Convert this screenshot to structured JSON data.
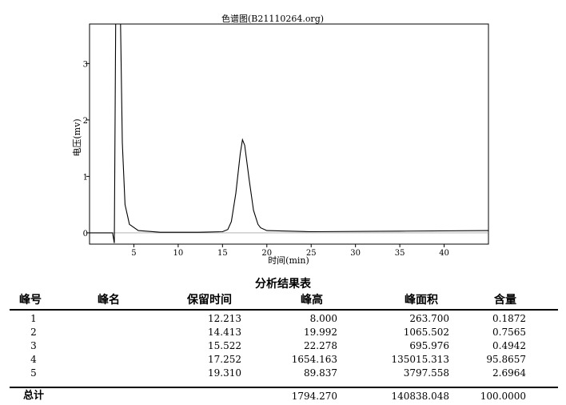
{
  "chart_data": {
    "type": "line",
    "title": "色谱图(B21110264.org)",
    "xlabel": "时间(min)",
    "ylabel": "电压(mv)",
    "xlim": [
      0,
      45
    ],
    "ylim": [
      -0.2,
      3.7
    ],
    "x_ticks": [
      5,
      10,
      15,
      20,
      25,
      30,
      35,
      40
    ],
    "y_ticks": [
      0,
      1,
      2,
      3
    ],
    "grid": false,
    "series": [
      {
        "values_xy": [
          [
            0,
            0.0
          ],
          [
            2.6,
            0.0
          ],
          [
            2.8,
            -0.18
          ],
          [
            2.95,
            3.7
          ],
          [
            3.5,
            3.7
          ],
          [
            3.7,
            1.6
          ],
          [
            4.0,
            0.5
          ],
          [
            4.5,
            0.15
          ],
          [
            5.5,
            0.04
          ],
          [
            8.0,
            0.01
          ],
          [
            12.2,
            0.01
          ],
          [
            15.0,
            0.02
          ],
          [
            15.6,
            0.06
          ],
          [
            16.0,
            0.2
          ],
          [
            16.5,
            0.7
          ],
          [
            17.0,
            1.4
          ],
          [
            17.25,
            1.65
          ],
          [
            17.5,
            1.55
          ],
          [
            18.0,
            0.95
          ],
          [
            18.5,
            0.4
          ],
          [
            19.0,
            0.15
          ],
          [
            19.3,
            0.09
          ],
          [
            20.0,
            0.04
          ],
          [
            25.0,
            0.02
          ],
          [
            35.0,
            0.03
          ],
          [
            45.0,
            0.04
          ]
        ]
      }
    ]
  },
  "table": {
    "title": "分析结果表",
    "headers": [
      "峰号",
      "峰名",
      "保留时间",
      "峰高",
      "峰面积",
      "含量"
    ],
    "rows": [
      {
        "id": "1",
        "name": "",
        "rt": "12.213",
        "height": "8.000",
        "area": "263.700",
        "content": "0.1872"
      },
      {
        "id": "2",
        "name": "",
        "rt": "14.413",
        "height": "19.992",
        "area": "1065.502",
        "content": "0.7565"
      },
      {
        "id": "3",
        "name": "",
        "rt": "15.522",
        "height": "22.278",
        "area": "695.976",
        "content": "0.4942"
      },
      {
        "id": "4",
        "name": "",
        "rt": "17.252",
        "height": "1654.163",
        "area": "135015.313",
        "content": "95.8657"
      },
      {
        "id": "5",
        "name": "",
        "rt": "19.310",
        "height": "89.837",
        "area": "3797.558",
        "content": "2.6964"
      }
    ],
    "total": {
      "label": "总计",
      "height": "1794.270",
      "area": "140838.048",
      "content": "100.0000"
    }
  }
}
